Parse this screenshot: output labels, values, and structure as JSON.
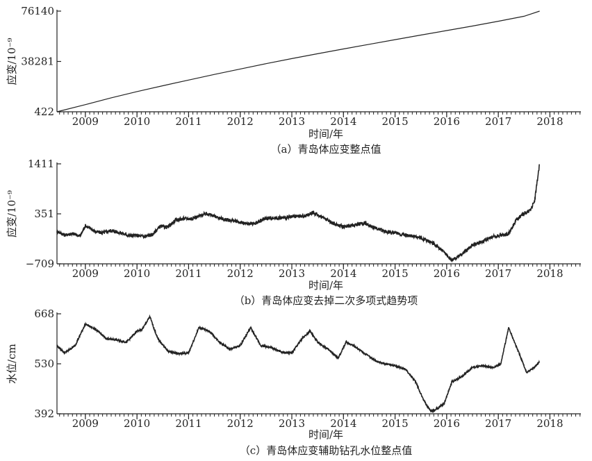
{
  "chart_data": [
    {
      "type": "line",
      "caption": "（a）青岛体应变整点值",
      "xlabel": "时间/年",
      "ylabel": "应变/10⁻⁹",
      "x_ticks": [
        "2009",
        "2010",
        "2011",
        "2012",
        "2013",
        "2014",
        "2015",
        "2016",
        "2017",
        "2018"
      ],
      "y_ticks": [
        "76140",
        "38281",
        "422"
      ],
      "xlim": [
        2008.45,
        2018.6
      ],
      "ylim": [
        422,
        76140
      ],
      "series": [
        {
          "x": [
            2008.45,
            2009.0,
            2009.5,
            2010.0,
            2010.5,
            2011.0,
            2011.5,
            2012.0,
            2012.5,
            2013.0,
            2013.5,
            2014.0,
            2014.5,
            2015.0,
            2015.5,
            2016.0,
            2016.5,
            2017.0,
            2017.5,
            2017.8
          ],
          "y": [
            422,
            5800,
            10900,
            15600,
            20000,
            24300,
            28500,
            32600,
            36600,
            40400,
            44100,
            47700,
            51200,
            54700,
            58100,
            61500,
            64900,
            68500,
            72300,
            76140
          ]
        }
      ],
      "grid": false
    },
    {
      "type": "line",
      "caption": "（b）青岛体应变去掉二次多项式趋势项",
      "xlabel": "时间/年",
      "ylabel": "应变/10⁻⁹",
      "x_ticks": [
        "2009",
        "2010",
        "2011",
        "2012",
        "2013",
        "2014",
        "2015",
        "2016",
        "2017",
        "2018"
      ],
      "y_ticks": [
        "1411",
        "351",
        "−709"
      ],
      "xlim": [
        2008.45,
        2018.6
      ],
      "ylim": [
        -709,
        1411
      ],
      "series": [
        {
          "x": [
            2008.45,
            2008.6,
            2008.75,
            2008.9,
            2009.0,
            2009.1,
            2009.2,
            2009.35,
            2009.5,
            2009.7,
            2009.85,
            2010.0,
            2010.15,
            2010.3,
            2010.45,
            2010.6,
            2010.75,
            2010.9,
            2011.05,
            2011.2,
            2011.35,
            2011.5,
            2011.7,
            2011.9,
            2012.1,
            2012.3,
            2012.5,
            2012.7,
            2012.9,
            2013.1,
            2013.25,
            2013.4,
            2013.6,
            2013.8,
            2014.0,
            2014.2,
            2014.4,
            2014.6,
            2014.8,
            2015.0,
            2015.2,
            2015.4,
            2015.6,
            2015.8,
            2015.95,
            2016.1,
            2016.3,
            2016.5,
            2016.7,
            2016.9,
            2017.05,
            2017.2,
            2017.35,
            2017.5,
            2017.6,
            2017.7,
            2017.8
          ],
          "y": [
            -20,
            -100,
            -70,
            -120,
            100,
            40,
            -30,
            -50,
            0,
            -60,
            -110,
            -110,
            -130,
            -90,
            90,
            70,
            220,
            250,
            250,
            300,
            360,
            300,
            230,
            200,
            140,
            150,
            260,
            260,
            270,
            300,
            300,
            380,
            280,
            150,
            80,
            110,
            160,
            60,
            -20,
            -60,
            -90,
            -130,
            -200,
            -320,
            -460,
            -640,
            -500,
            -310,
            -230,
            -130,
            -110,
            -70,
            230,
            360,
            410,
            600,
            1411
          ]
        }
      ],
      "grid": false
    },
    {
      "type": "line",
      "caption": "（c）青岛体应变辅助钻孔水位整点值",
      "xlabel": "时间/年",
      "ylabel": "水位/cm",
      "x_ticks": [
        "2009",
        "2010",
        "2011",
        "2012",
        "2013",
        "2014",
        "2015",
        "2016",
        "2017",
        "2018"
      ],
      "y_ticks": [
        "668",
        "530",
        "392"
      ],
      "xlim": [
        2008.45,
        2018.6
      ],
      "ylim": [
        392,
        668
      ],
      "series": [
        {
          "x": [
            2008.45,
            2008.6,
            2008.8,
            2009.0,
            2009.2,
            2009.4,
            2009.6,
            2009.8,
            2010.0,
            2010.1,
            2010.25,
            2010.4,
            2010.6,
            2010.8,
            2011.0,
            2011.2,
            2011.4,
            2011.6,
            2011.8,
            2012.0,
            2012.2,
            2012.4,
            2012.6,
            2012.8,
            2013.0,
            2013.2,
            2013.35,
            2013.5,
            2013.7,
            2013.9,
            2014.05,
            2014.2,
            2014.4,
            2014.6,
            2014.8,
            2015.0,
            2015.2,
            2015.4,
            2015.55,
            2015.7,
            2015.8,
            2015.95,
            2016.1,
            2016.3,
            2016.5,
            2016.7,
            2016.9,
            2017.05,
            2017.2,
            2017.4,
            2017.55,
            2017.7,
            2017.8
          ],
          "y": [
            580,
            560,
            580,
            640,
            625,
            600,
            596,
            590,
            620,
            625,
            660,
            600,
            565,
            558,
            560,
            630,
            620,
            590,
            570,
            580,
            630,
            580,
            575,
            562,
            560,
            600,
            620,
            590,
            570,
            545,
            590,
            580,
            560,
            540,
            530,
            525,
            515,
            480,
            430,
            398,
            405,
            420,
            480,
            495,
            520,
            525,
            520,
            530,
            630,
            560,
            505,
            520,
            535
          ]
        }
      ],
      "grid": false
    }
  ]
}
